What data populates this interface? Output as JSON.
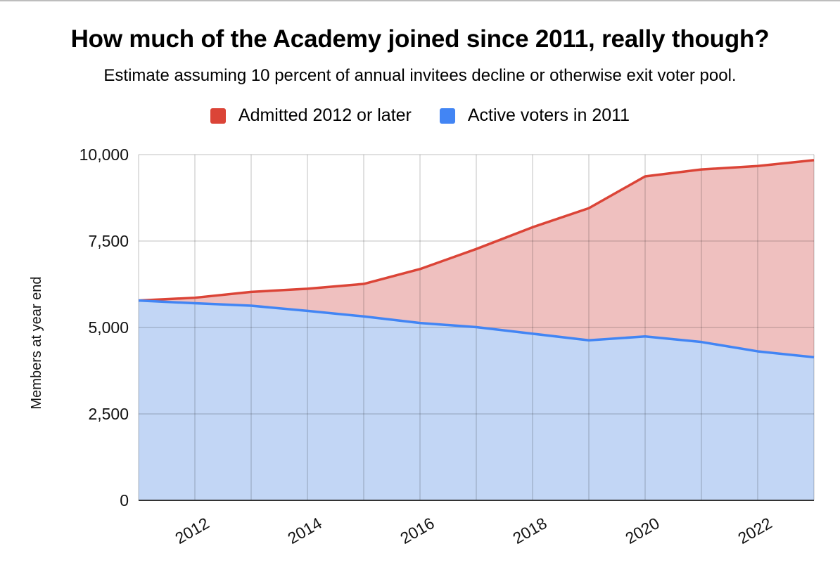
{
  "chart_data": {
    "type": "area",
    "stacked": true,
    "title": "How much of the Academy joined since 2011, really though?",
    "subtitle": "Estimate assuming 10 percent of annual invitees decline or otherwise exit voter pool.",
    "xlabel": "",
    "ylabel": "Members at year end",
    "x": [
      2011,
      2012,
      2013,
      2014,
      2015,
      2016,
      2017,
      2018,
      2019,
      2020,
      2021,
      2022,
      2023
    ],
    "x_tick_labels": [
      "2012",
      "2014",
      "2016",
      "2018",
      "2020",
      "2022"
    ],
    "y_tick_labels": [
      "0",
      "2,500",
      "5,000",
      "7,500",
      "10,000"
    ],
    "ylim": [
      0,
      10000
    ],
    "grid": true,
    "legend_position": "top",
    "series": [
      {
        "name": "Active voters in 2011",
        "color": "#4285f4",
        "fill": "#c2d6f5",
        "values": [
          5780,
          5700,
          5630,
          5480,
          5320,
          5130,
          5010,
          4820,
          4630,
          4740,
          4580,
          4310,
          4140
        ]
      },
      {
        "name": "Admitted 2012 or later",
        "color": "#db4437",
        "fill": "#efc0bf",
        "values": [
          0,
          160,
          400,
          640,
          940,
          1560,
          2260,
          3080,
          3820,
          4630,
          4990,
          5360,
          5700
        ]
      }
    ],
    "totals": [
      5780,
      5860,
      6030,
      6120,
      6260,
      6690,
      7270,
      7900,
      8450,
      9370,
      9570,
      9670,
      9840
    ]
  }
}
